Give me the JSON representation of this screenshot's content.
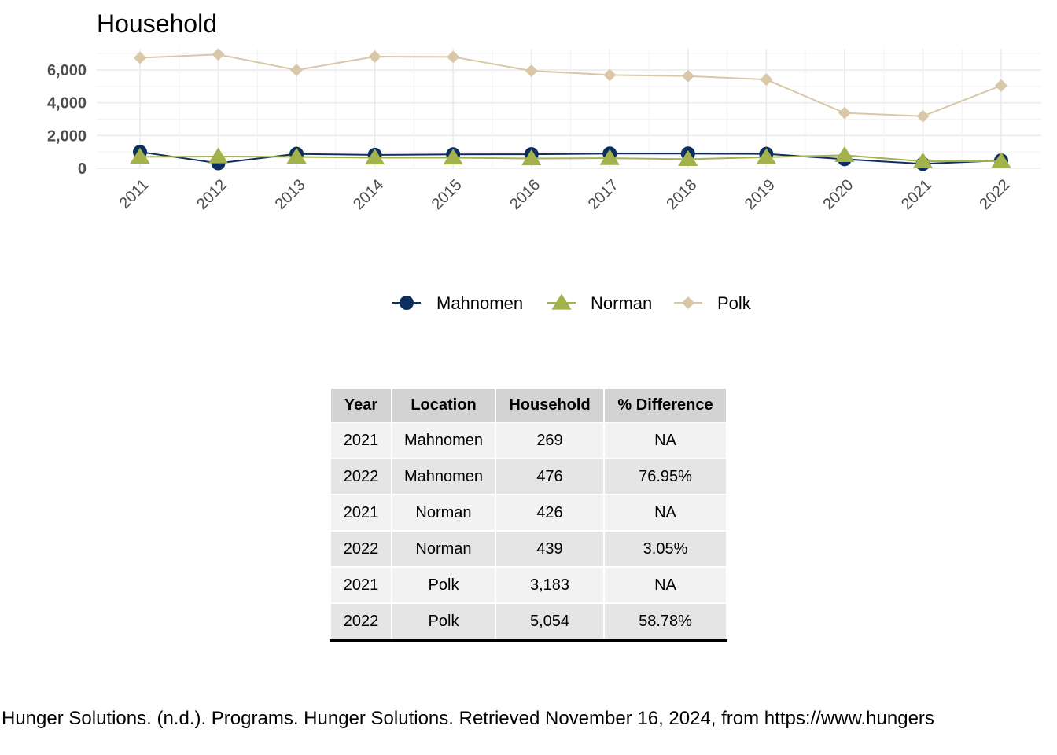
{
  "chart_data": {
    "type": "line",
    "title": "Household",
    "x": [
      "2011",
      "2012",
      "2013",
      "2014",
      "2015",
      "2016",
      "2017",
      "2018",
      "2019",
      "2020",
      "2021",
      "2022"
    ],
    "yticks": [
      "0",
      "2,000",
      "4,000",
      "6,000"
    ],
    "ylim": [
      0,
      7300
    ],
    "grid": true,
    "legend_position": "bottom",
    "series": [
      {
        "name": "Mahnomen",
        "color": "#0c2f5e",
        "marker": "circle",
        "values": [
          1000,
          310,
          880,
          820,
          850,
          860,
          900,
          900,
          880,
          560,
          269,
          476
        ]
      },
      {
        "name": "Norman",
        "color": "#a3b24a",
        "marker": "triangle",
        "values": [
          700,
          720,
          700,
          650,
          650,
          600,
          620,
          560,
          680,
          800,
          426,
          439
        ]
      },
      {
        "name": "Polk",
        "color": "#d8c8a8",
        "marker": "diamond",
        "values": [
          6750,
          6950,
          6000,
          6820,
          6800,
          5950,
          5700,
          5630,
          5420,
          3380,
          3183,
          5054
        ]
      }
    ]
  },
  "table": {
    "headers": [
      "Year",
      "Location",
      "Household",
      "% Difference"
    ],
    "rows": [
      [
        "2021",
        "Mahnomen",
        "269",
        "NA"
      ],
      [
        "2022",
        "Mahnomen",
        "476",
        "76.95%"
      ],
      [
        "2021",
        "Norman",
        "426",
        "NA"
      ],
      [
        "2022",
        "Norman",
        "439",
        "3.05%"
      ],
      [
        "2021",
        "Polk",
        "3,183",
        "NA"
      ],
      [
        "2022",
        "Polk",
        "5,054",
        "58.78%"
      ]
    ]
  },
  "citation": "Hunger Solutions. (n.d.). Programs. Hunger Solutions. Retrieved November 16, 2024, from https://www.hungers"
}
